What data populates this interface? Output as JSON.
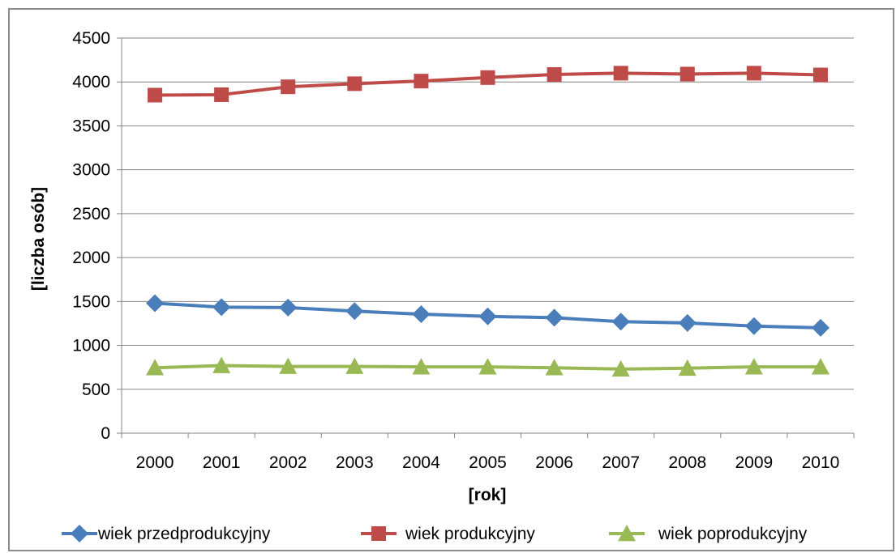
{
  "chart_data": {
    "type": "line",
    "title": "",
    "xlabel": "[rok]",
    "ylabel": "[liczba osób]",
    "ylim": [
      0,
      4500
    ],
    "y_ticks": [
      0,
      500,
      1000,
      1500,
      2000,
      2500,
      3000,
      3500,
      4000,
      4500
    ],
    "grid": true,
    "legend_position": "bottom",
    "categories": [
      "2000",
      "2001",
      "2002",
      "2003",
      "2004",
      "2005",
      "2006",
      "2007",
      "2008",
      "2009",
      "2010"
    ],
    "series": [
      {
        "name": "wiek przedprodukcyjny",
        "color": "#4a7ebb",
        "marker": "diamond",
        "values": [
          1480,
          1435,
          1430,
          1390,
          1355,
          1330,
          1315,
          1270,
          1255,
          1220,
          1200
        ]
      },
      {
        "name": "wiek produkcyjny",
        "color": "#be4b48",
        "marker": "square",
        "values": [
          3850,
          3855,
          3945,
          3980,
          4010,
          4050,
          4085,
          4100,
          4090,
          4100,
          4080
        ]
      },
      {
        "name": "wiek poprodukcyjny",
        "color": "#98b954",
        "marker": "triangle",
        "values": [
          745,
          770,
          760,
          760,
          755,
          755,
          745,
          730,
          740,
          755,
          755
        ]
      }
    ]
  }
}
